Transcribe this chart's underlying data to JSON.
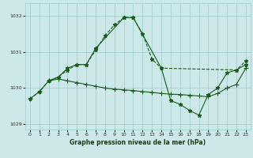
{
  "title": "Graphe pression niveau de la mer (hPa)",
  "bg_color": "#cce8e8",
  "grid_color": "#99cccc",
  "line_color": "#1a5c1a",
  "xlim": [
    -0.5,
    23.5
  ],
  "ylim": [
    1028.85,
    1032.35
  ],
  "yticks": [
    1029,
    1030,
    1031,
    1032
  ],
  "xticks": [
    0,
    1,
    2,
    3,
    4,
    5,
    6,
    7,
    8,
    9,
    10,
    11,
    12,
    13,
    14,
    15,
    16,
    17,
    18,
    19,
    20,
    21,
    22,
    23
  ],
  "series": [
    {
      "x": [
        0,
        1,
        2,
        3,
        4,
        5,
        6,
        7,
        8,
        9,
        10,
        11,
        12,
        13,
        14,
        22,
        23
      ],
      "y": [
        1029.7,
        1029.9,
        1030.2,
        1030.3,
        1030.5,
        1030.65,
        1030.65,
        1031.05,
        1031.45,
        1031.75,
        1031.95,
        1031.95,
        1031.5,
        1030.8,
        1030.55,
        1030.5,
        1030.75
      ],
      "linestyle": "--",
      "marker": "*",
      "markersize": 3.5,
      "linewidth": 0.8
    },
    {
      "x": [
        0,
        1,
        2,
        3,
        4,
        5,
        6,
        7,
        8,
        9,
        10,
        11,
        12,
        13,
        14,
        15,
        16,
        17,
        18,
        19,
        20,
        21,
        22,
        23
      ],
      "y": [
        1029.7,
        1029.9,
        1030.2,
        1030.25,
        1030.2,
        1030.15,
        1030.1,
        1030.05,
        1030.0,
        1029.97,
        1029.95,
        1029.93,
        1029.9,
        1029.88,
        1029.85,
        1029.83,
        1029.82,
        1029.8,
        1029.78,
        1029.76,
        1029.85,
        1030.0,
        1030.1,
        1030.55
      ],
      "linestyle": "-",
      "marker": "+",
      "markersize": 4,
      "linewidth": 0.8
    },
    {
      "x": [
        2,
        3,
        4,
        5,
        6,
        7,
        10,
        11,
        14,
        15,
        16,
        17,
        18,
        19,
        20,
        21,
        22,
        23
      ],
      "y": [
        1030.2,
        1030.3,
        1030.55,
        1030.65,
        1030.65,
        1031.1,
        1031.95,
        1031.95,
        1030.55,
        1029.65,
        1029.55,
        1029.38,
        1029.25,
        1029.82,
        1030.0,
        1030.42,
        1030.5,
        1030.65
      ],
      "linestyle": "-",
      "marker": "*",
      "markersize": 3.5,
      "linewidth": 0.8
    }
  ]
}
